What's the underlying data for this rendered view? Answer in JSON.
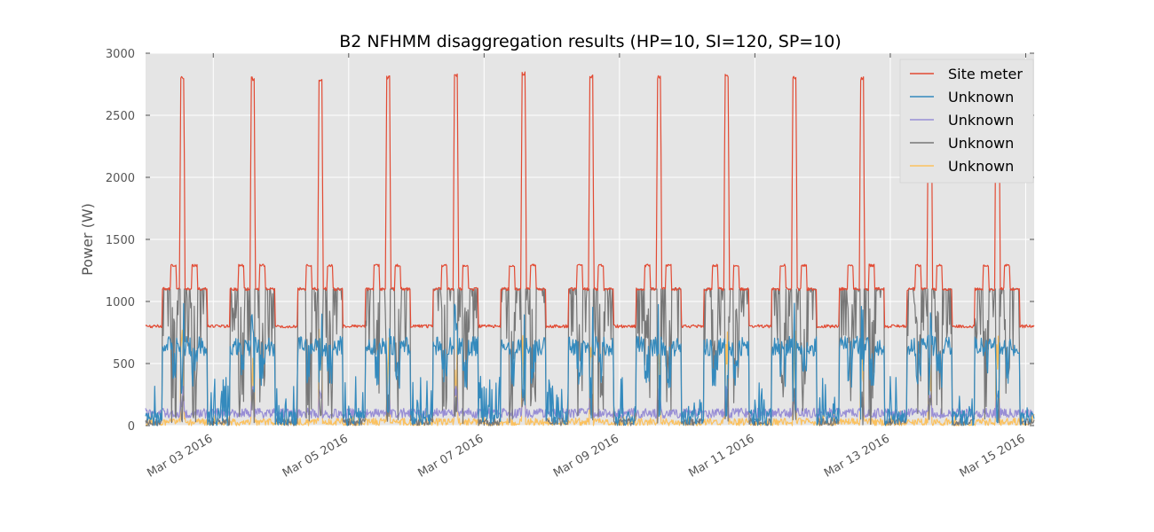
{
  "chart_data": {
    "type": "line",
    "title": "B2 NFHMM disaggregation results (HP=10, SI=120, SP=10)",
    "xlabel": "",
    "ylabel": "Power (W)",
    "xlim": [
      "2016-03-02T00:00",
      "2016-03-15T03:00"
    ],
    "ylim": [
      0,
      3000
    ],
    "y_ticks": [
      0,
      500,
      1000,
      1500,
      2000,
      2500,
      3000
    ],
    "x_ticks": [
      "2016-03-03",
      "2016-03-05",
      "2016-03-07",
      "2016-03-09",
      "2016-03-11",
      "2016-03-13",
      "2016-03-15"
    ],
    "x_tick_labels": [
      "Mar 03 2016",
      "Mar 05 2016",
      "Mar 07 2016",
      "Mar 09 2016",
      "Mar 11 2016",
      "Mar 13 2016",
      "Mar 15 2016"
    ],
    "grid": true,
    "legend_position": "top-right",
    "background": "#e5e5e5",
    "series": [
      {
        "name": "Site meter",
        "color": "#e24a33",
        "baseline_night": 800,
        "baseline_day": 1100,
        "shoulder_peak": 1300,
        "main_peak": 2820,
        "peak_times": [
          "2016-03-02T13:00",
          "2016-03-03T14:00",
          "2016-03-04T14:00",
          "2016-03-05T14:00",
          "2016-03-06T14:00",
          "2016-03-07T14:00",
          "2016-03-08T14:00",
          "2016-03-09T14:00",
          "2016-03-10T14:00",
          "2016-03-11T14:00",
          "2016-03-12T14:00",
          "2016-03-13T14:00",
          "2016-03-14T14:00"
        ],
        "peak_values": [
          2820,
          2810,
          2800,
          2820,
          2840,
          2850,
          2830,
          2820,
          2830,
          2820,
          2810,
          2800,
          2820
        ]
      },
      {
        "name": "Unknown",
        "color": "#348abd",
        "typical_range": [
          0,
          700
        ],
        "daytime_level": 640
      },
      {
        "name": "Unknown",
        "color": "#988ed5",
        "typical_range": [
          50,
          320
        ],
        "daytime_level": 100
      },
      {
        "name": "Unknown",
        "color": "#777777",
        "typical_range": [
          0,
          1100
        ],
        "daytime_level": 1100
      },
      {
        "name": "Unknown",
        "color": "#fbc15e",
        "typical_range": [
          0,
          780
        ],
        "daytime_level": 30
      }
    ]
  }
}
